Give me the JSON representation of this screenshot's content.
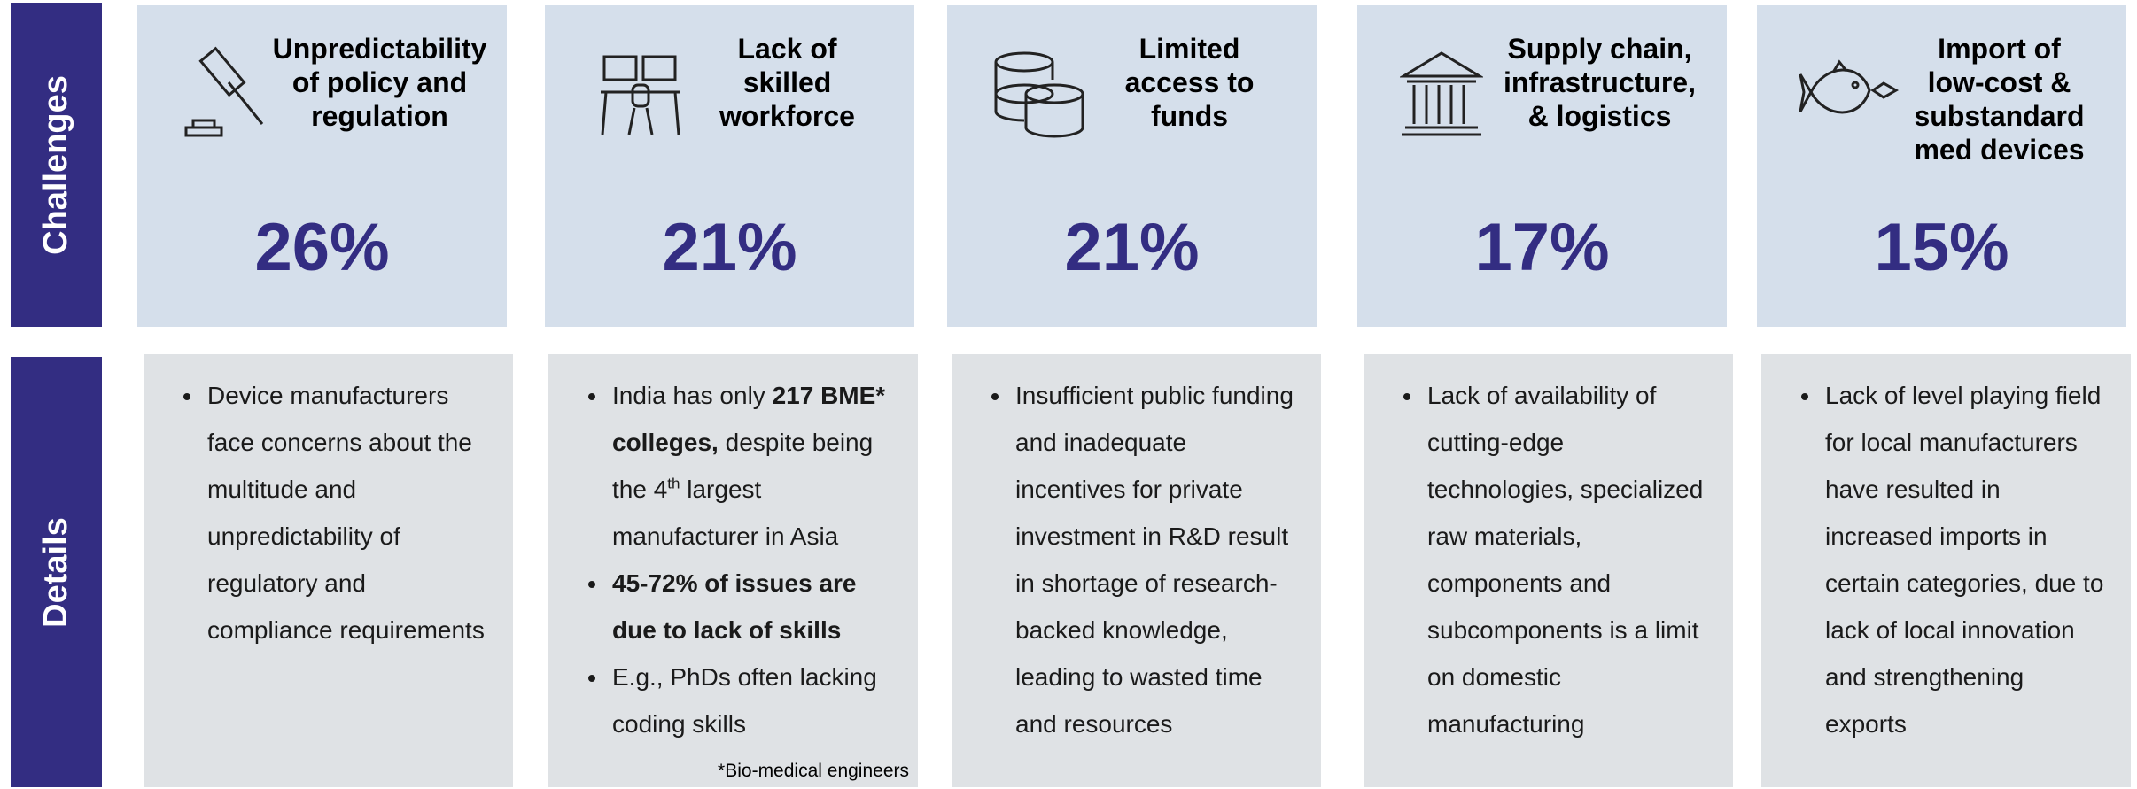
{
  "side_labels": {
    "challenges": "Challenges",
    "details": "Details"
  },
  "columns": [
    {
      "title": "Unpredictability\nof policy and\nregulation",
      "percent": "26%",
      "bullets": [
        [
          {
            "text": "Device manufacturers face concerns about the multitude and unpredictability of regulatory and compliance requirements"
          }
        ]
      ]
    },
    {
      "title": "Lack of\nskilled\nworkforce",
      "percent": "21%",
      "bullets": [
        [
          {
            "text": "India has only "
          },
          {
            "text": "217 BME* colleges,",
            "bold": true
          },
          {
            "text": " despite being the 4"
          },
          {
            "text": "th",
            "sup": true
          },
          {
            "text": " largest manufacturer in Asia"
          }
        ],
        [
          {
            "text": "45-72% of issues are due to lack of skills",
            "bold": true
          }
        ],
        [
          {
            "text": "E.g., PhDs often lacking coding skills"
          }
        ]
      ],
      "footnote": "*Bio-medical engineers"
    },
    {
      "title": "Limited\naccess to\nfunds",
      "percent": "21%",
      "bullets": [
        [
          {
            "text": "Insufficient public funding and inadequate incentives for private investment in R&D result in shortage of research-backed knowledge, leading to wasted time and resources"
          }
        ]
      ]
    },
    {
      "title": "Supply chain,\ninfrastructure,\n& logistics",
      "percent": "17%",
      "bullets": [
        [
          {
            "text": "Lack of availability of cutting-edge technologies, specialized raw materials, components and subcomponents is a limit on domestic manufacturing"
          }
        ]
      ]
    },
    {
      "title": "Import of\nlow-cost &\nsubstandard\nmed devices",
      "percent": "15%",
      "bullets": [
        [
          {
            "text": "Lack of level playing field for local manufacturers have resulted in increased imports in certain categories, due to lack of local innovation and strengthening exports"
          }
        ]
      ]
    }
  ]
}
